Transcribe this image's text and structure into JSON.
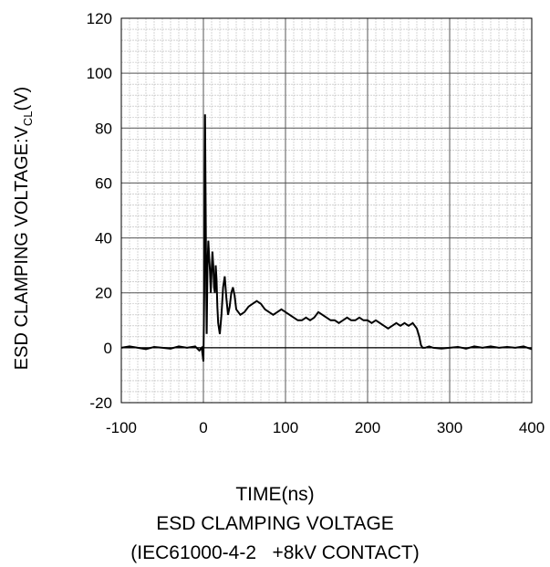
{
  "chart_data": {
    "type": "line",
    "title": "ESD CLAMPING VOLTAGE",
    "subtitle": "(IEC61000-4-2   +8kV CONTACT)",
    "xlabel": "TIME(ns)",
    "ylabel_main": "ESD CLAMPING VOLTAGE:V",
    "ylabel_sub": "CL",
    "ylabel_unit": "(V)",
    "xlim": [
      -100,
      400
    ],
    "ylim": [
      -20,
      120
    ],
    "xticks": [
      -100,
      0,
      100,
      200,
      300,
      400
    ],
    "yticks": [
      -20,
      0,
      20,
      40,
      60,
      80,
      100,
      120
    ],
    "grid": true,
    "x": [
      -100,
      -90,
      -80,
      -70,
      -60,
      -50,
      -40,
      -30,
      -20,
      -10,
      -5,
      -2,
      0,
      1,
      2,
      3,
      4,
      5,
      6,
      7,
      8,
      9,
      10,
      11,
      12,
      13,
      14,
      15,
      16,
      17,
      18,
      20,
      22,
      24,
      26,
      28,
      30,
      32,
      34,
      36,
      38,
      40,
      45,
      50,
      55,
      60,
      65,
      70,
      75,
      80,
      85,
      90,
      95,
      100,
      105,
      110,
      115,
      120,
      125,
      130,
      135,
      140,
      145,
      150,
      155,
      160,
      165,
      170,
      175,
      180,
      185,
      190,
      195,
      200,
      205,
      210,
      215,
      220,
      225,
      230,
      235,
      240,
      245,
      250,
      255,
      260,
      263,
      265,
      267,
      270,
      275,
      280,
      290,
      300,
      310,
      320,
      330,
      340,
      350,
      360,
      370,
      380,
      390,
      400
    ],
    "y": [
      0,
      0.5,
      0,
      -0.5,
      0.3,
      0,
      -0.3,
      0.5,
      0,
      0.5,
      -1,
      0,
      -5,
      20,
      85,
      40,
      5,
      30,
      39,
      33,
      28,
      20,
      28,
      35,
      30,
      22,
      20,
      30,
      25,
      15,
      9,
      5,
      12,
      22,
      26,
      18,
      12,
      15,
      20,
      22,
      19,
      14,
      12,
      13,
      15,
      16,
      17,
      16,
      14,
      13,
      12,
      13,
      14,
      13,
      12,
      11,
      10,
      10,
      11,
      10,
      11,
      13,
      12,
      11,
      10,
      10,
      9,
      10,
      11,
      10,
      10,
      11,
      10,
      10,
      9,
      10,
      9,
      8,
      7,
      8,
      9,
      8,
      9,
      8,
      9,
      7,
      4,
      1,
      0,
      0,
      0.5,
      0,
      -0.3,
      0,
      0.3,
      -0.3,
      0.5,
      0,
      0.5,
      0,
      0.3,
      0,
      0.5,
      -0.5
    ]
  }
}
